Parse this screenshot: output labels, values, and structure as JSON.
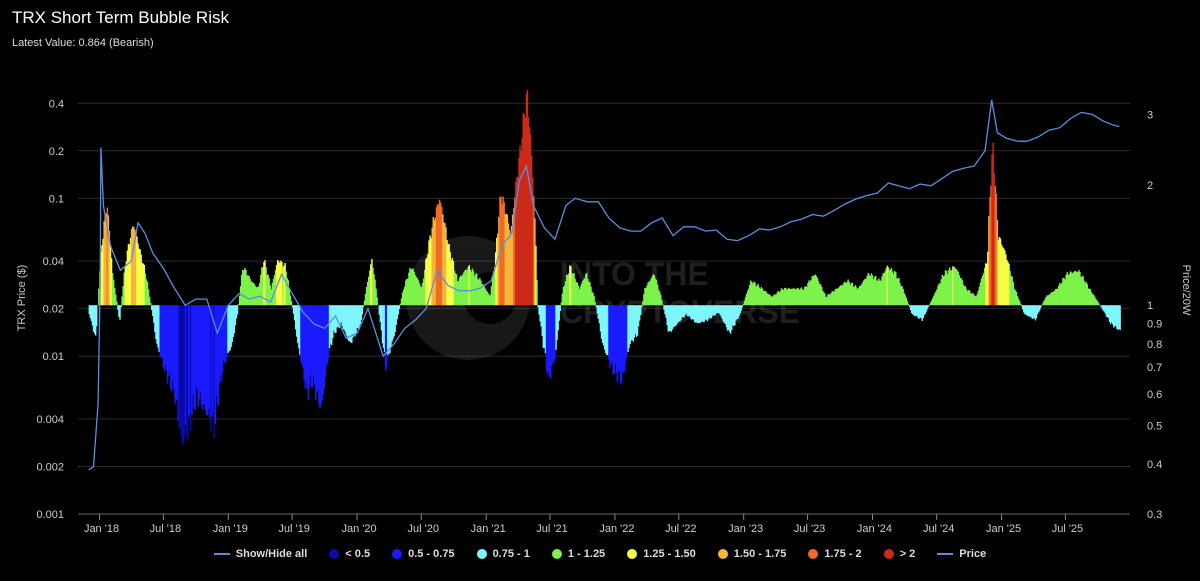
{
  "header": {
    "title": "TRX Short Term Bubble Risk",
    "subtitle": "Latest Value: 0.864 (Bearish)"
  },
  "watermark": {
    "line1": "INTO THE",
    "line2": "CRYPTOVERSE"
  },
  "chart_data": {
    "type": "bar",
    "y_left": {
      "label": "TRX Price ($)",
      "scale": "log",
      "range": [
        0.001,
        0.5
      ],
      "ticks": [
        "0.001",
        "0.002",
        "0.004",
        "0.01",
        "0.02",
        "0.04",
        "0.1",
        "0.2",
        "0.4"
      ],
      "tick_values": [
        0.001,
        0.002,
        0.004,
        0.01,
        0.02,
        0.04,
        0.1,
        0.2,
        0.4
      ]
    },
    "y_right": {
      "label": "Price/20W",
      "scale": "log",
      "range": [
        0.3,
        3.5
      ],
      "ticks": [
        "0.3",
        "0.4",
        "0.5",
        "0.6",
        "0.7",
        "0.8",
        "0.9",
        "1",
        "2",
        "3"
      ],
      "tick_values": [
        0.3,
        0.4,
        0.5,
        0.6,
        0.7,
        0.8,
        0.9,
        1,
        2,
        3
      ]
    },
    "x_range": [
      "2017-11-01",
      "2025-12-31"
    ],
    "x_ticks": [
      "Jan '18",
      "Jul '18",
      "Jan '19",
      "Jul '19",
      "Jan '20",
      "Jul '20",
      "Jan '21",
      "Jul '21",
      "Jan '22",
      "Jul '22",
      "Jan '23",
      "Jul '23",
      "Jan '24",
      "Jul '24",
      "Jan '25",
      "Jul '25"
    ],
    "x_tick_dates": [
      "2018-01-01",
      "2018-07-01",
      "2019-01-01",
      "2019-07-01",
      "2020-01-01",
      "2020-07-01",
      "2021-01-01",
      "2021-07-01",
      "2022-01-01",
      "2022-07-01",
      "2023-01-01",
      "2023-07-01",
      "2024-01-01",
      "2024-07-01",
      "2025-01-01",
      "2025-07-01"
    ],
    "bands": [
      {
        "label": "< 0.5",
        "color": "#0a0aa8"
      },
      {
        "label": "0.5 - 0.75",
        "color": "#1a1aff"
      },
      {
        "label": "0.75 - 1",
        "color": "#7ff5ff"
      },
      {
        "label": "1 - 1.25",
        "color": "#7cf24a"
      },
      {
        "label": "1.25 - 1.50",
        "color": "#f6ff45"
      },
      {
        "label": "1.50 - 1.75",
        "color": "#f6b53a"
      },
      {
        "label": "1.75 - 2",
        "color": "#f06a22"
      },
      {
        "label": "> 2",
        "color": "#cc2a18"
      }
    ],
    "ratio_series": {
      "name": "Price/20W",
      "points": [
        [
          "2017-12-01",
          0.95
        ],
        [
          "2017-12-20",
          0.82
        ],
        [
          "2018-01-05",
          1.4
        ],
        [
          "2018-01-20",
          1.8
        ],
        [
          "2018-02-05",
          1.2
        ],
        [
          "2018-02-25",
          0.9
        ],
        [
          "2018-03-15",
          1.3
        ],
        [
          "2018-04-05",
          1.6
        ],
        [
          "2018-04-25",
          1.35
        ],
        [
          "2018-05-10",
          1.2
        ],
        [
          "2018-05-25",
          1.0
        ],
        [
          "2018-06-10",
          0.8
        ],
        [
          "2018-07-01",
          0.7
        ],
        [
          "2018-08-01",
          0.6
        ],
        [
          "2018-08-20",
          0.45
        ],
        [
          "2018-09-10",
          0.5
        ],
        [
          "2018-10-01",
          0.6
        ],
        [
          "2018-10-25",
          0.55
        ],
        [
          "2018-11-20",
          0.5
        ],
        [
          "2018-12-15",
          0.7
        ],
        [
          "2019-01-10",
          0.8
        ],
        [
          "2019-01-25",
          0.95
        ],
        [
          "2019-02-10",
          1.25
        ],
        [
          "2019-03-05",
          1.15
        ],
        [
          "2019-03-25",
          1.1
        ],
        [
          "2019-04-10",
          1.3
        ],
        [
          "2019-05-01",
          1.1
        ],
        [
          "2019-05-20",
          1.3
        ],
        [
          "2019-06-10",
          1.25
        ],
        [
          "2019-06-25",
          1.05
        ],
        [
          "2019-07-15",
          0.8
        ],
        [
          "2019-08-10",
          0.6
        ],
        [
          "2019-08-25",
          0.65
        ],
        [
          "2019-09-20",
          0.55
        ],
        [
          "2019-10-10",
          0.75
        ],
        [
          "2019-10-25",
          0.85
        ],
        [
          "2019-11-15",
          0.9
        ],
        [
          "2019-12-10",
          0.8
        ],
        [
          "2020-01-10",
          0.9
        ],
        [
          "2020-02-10",
          1.3
        ],
        [
          "2020-03-05",
          0.9
        ],
        [
          "2020-03-20",
          0.7
        ],
        [
          "2020-04-15",
          0.85
        ],
        [
          "2020-05-10",
          1.1
        ],
        [
          "2020-06-01",
          1.25
        ],
        [
          "2020-07-01",
          1.1
        ],
        [
          "2020-08-01",
          1.6
        ],
        [
          "2020-08-20",
          1.85
        ],
        [
          "2020-09-15",
          1.4
        ],
        [
          "2020-10-10",
          1.15
        ],
        [
          "2020-11-10",
          1.25
        ],
        [
          "2020-12-15",
          1.15
        ],
        [
          "2021-01-10",
          1.05
        ],
        [
          "2021-01-25",
          1.3
        ],
        [
          "2021-02-10",
          1.9
        ],
        [
          "2021-02-25",
          1.7
        ],
        [
          "2021-03-10",
          1.5
        ],
        [
          "2021-04-05",
          2.4
        ],
        [
          "2021-04-25",
          3.4
        ],
        [
          "2021-05-10",
          2.2
        ],
        [
          "2021-05-25",
          1.0
        ],
        [
          "2021-06-10",
          0.8
        ],
        [
          "2021-06-25",
          0.65
        ],
        [
          "2021-07-15",
          0.75
        ],
        [
          "2021-08-05",
          1.1
        ],
        [
          "2021-08-25",
          1.25
        ],
        [
          "2021-09-20",
          1.1
        ],
        [
          "2021-10-10",
          1.2
        ],
        [
          "2021-11-01",
          1.05
        ],
        [
          "2021-11-25",
          0.8
        ],
        [
          "2021-12-20",
          0.7
        ],
        [
          "2022-01-20",
          0.65
        ],
        [
          "2022-02-10",
          0.8
        ],
        [
          "2022-03-05",
          0.85
        ],
        [
          "2022-03-25",
          1.1
        ],
        [
          "2022-04-20",
          1.2
        ],
        [
          "2022-05-10",
          1.05
        ],
        [
          "2022-06-01",
          0.85
        ],
        [
          "2022-06-25",
          0.9
        ],
        [
          "2022-07-20",
          0.95
        ],
        [
          "2022-08-20",
          0.9
        ],
        [
          "2022-09-20",
          0.92
        ],
        [
          "2022-10-20",
          0.96
        ],
        [
          "2022-11-20",
          0.85
        ],
        [
          "2022-12-20",
          0.95
        ],
        [
          "2023-01-20",
          1.15
        ],
        [
          "2023-02-20",
          1.1
        ],
        [
          "2023-03-20",
          1.05
        ],
        [
          "2023-04-20",
          1.1
        ],
        [
          "2023-05-20",
          1.1
        ],
        [
          "2023-06-20",
          1.1
        ],
        [
          "2023-07-20",
          1.2
        ],
        [
          "2023-08-20",
          1.05
        ],
        [
          "2023-09-20",
          1.1
        ],
        [
          "2023-10-20",
          1.15
        ],
        [
          "2023-11-20",
          1.1
        ],
        [
          "2023-12-20",
          1.2
        ],
        [
          "2024-01-20",
          1.15
        ],
        [
          "2024-02-10",
          1.25
        ],
        [
          "2024-03-05",
          1.2
        ],
        [
          "2024-03-25",
          1.1
        ],
        [
          "2024-04-20",
          0.95
        ],
        [
          "2024-05-20",
          0.92
        ],
        [
          "2024-06-20",
          1.05
        ],
        [
          "2024-07-20",
          1.2
        ],
        [
          "2024-08-20",
          1.25
        ],
        [
          "2024-09-20",
          1.1
        ],
        [
          "2024-10-20",
          1.05
        ],
        [
          "2024-11-20",
          1.3
        ],
        [
          "2024-12-05",
          2.5
        ],
        [
          "2024-12-20",
          1.5
        ],
        [
          "2025-01-10",
          1.35
        ],
        [
          "2025-02-05",
          1.1
        ],
        [
          "2025-03-05",
          0.95
        ],
        [
          "2025-04-05",
          0.92
        ],
        [
          "2025-05-05",
          1.05
        ],
        [
          "2025-06-05",
          1.1
        ],
        [
          "2025-07-05",
          1.2
        ],
        [
          "2025-08-05",
          1.22
        ],
        [
          "2025-09-05",
          1.1
        ],
        [
          "2025-10-05",
          1.0
        ],
        [
          "2025-11-05",
          0.9
        ],
        [
          "2025-12-01",
          0.864
        ]
      ]
    },
    "price_series": {
      "name": "Price",
      "color": "#5a8fe0",
      "points": [
        [
          "2017-12-01",
          0.0019
        ],
        [
          "2017-12-15",
          0.002
        ],
        [
          "2017-12-28",
          0.005
        ],
        [
          "2018-01-03",
          0.03
        ],
        [
          "2018-01-05",
          0.21
        ],
        [
          "2018-01-12",
          0.09
        ],
        [
          "2018-02-01",
          0.05
        ],
        [
          "2018-03-01",
          0.035
        ],
        [
          "2018-04-01",
          0.04
        ],
        [
          "2018-04-20",
          0.07
        ],
        [
          "2018-05-10",
          0.06
        ],
        [
          "2018-06-01",
          0.045
        ],
        [
          "2018-07-01",
          0.036
        ],
        [
          "2018-08-01",
          0.027
        ],
        [
          "2018-09-01",
          0.021
        ],
        [
          "2018-10-01",
          0.023
        ],
        [
          "2018-11-01",
          0.023
        ],
        [
          "2018-12-01",
          0.014
        ],
        [
          "2019-01-01",
          0.021
        ],
        [
          "2019-02-01",
          0.025
        ],
        [
          "2019-03-01",
          0.023
        ],
        [
          "2019-04-01",
          0.024
        ],
        [
          "2019-05-01",
          0.022
        ],
        [
          "2019-06-01",
          0.033
        ],
        [
          "2019-07-01",
          0.025
        ],
        [
          "2019-08-01",
          0.019
        ],
        [
          "2019-09-01",
          0.016
        ],
        [
          "2019-10-01",
          0.015
        ],
        [
          "2019-11-01",
          0.018
        ],
        [
          "2019-12-01",
          0.013
        ],
        [
          "2020-01-01",
          0.014
        ],
        [
          "2020-02-01",
          0.02
        ],
        [
          "2020-03-15",
          0.01
        ],
        [
          "2020-04-15",
          0.012
        ],
        [
          "2020-05-15",
          0.015
        ],
        [
          "2020-06-15",
          0.017
        ],
        [
          "2020-07-15",
          0.02
        ],
        [
          "2020-08-15",
          0.035
        ],
        [
          "2020-09-15",
          0.028
        ],
        [
          "2020-10-15",
          0.026
        ],
        [
          "2020-11-15",
          0.026
        ],
        [
          "2020-12-15",
          0.027
        ],
        [
          "2021-01-15",
          0.03
        ],
        [
          "2021-02-15",
          0.05
        ],
        [
          "2021-03-15",
          0.06
        ],
        [
          "2021-04-05",
          0.13
        ],
        [
          "2021-04-25",
          0.16
        ],
        [
          "2021-05-15",
          0.09
        ],
        [
          "2021-06-15",
          0.065
        ],
        [
          "2021-07-15",
          0.055
        ],
        [
          "2021-08-15",
          0.09
        ],
        [
          "2021-09-10",
          0.1
        ],
        [
          "2021-10-15",
          0.095
        ],
        [
          "2021-11-15",
          0.095
        ],
        [
          "2021-12-15",
          0.075
        ],
        [
          "2022-01-15",
          0.065
        ],
        [
          "2022-02-15",
          0.062
        ],
        [
          "2022-03-15",
          0.062
        ],
        [
          "2022-04-15",
          0.07
        ],
        [
          "2022-05-15",
          0.075
        ],
        [
          "2022-06-15",
          0.058
        ],
        [
          "2022-07-15",
          0.066
        ],
        [
          "2022-08-15",
          0.066
        ],
        [
          "2022-09-15",
          0.062
        ],
        [
          "2022-10-15",
          0.063
        ],
        [
          "2022-11-15",
          0.055
        ],
        [
          "2022-12-15",
          0.054
        ],
        [
          "2023-01-15",
          0.058
        ],
        [
          "2023-02-15",
          0.064
        ],
        [
          "2023-03-15",
          0.063
        ],
        [
          "2023-04-15",
          0.066
        ],
        [
          "2023-05-15",
          0.071
        ],
        [
          "2023-06-15",
          0.074
        ],
        [
          "2023-07-15",
          0.079
        ],
        [
          "2023-08-15",
          0.077
        ],
        [
          "2023-09-15",
          0.084
        ],
        [
          "2023-10-15",
          0.092
        ],
        [
          "2023-11-15",
          0.099
        ],
        [
          "2023-12-15",
          0.104
        ],
        [
          "2024-01-15",
          0.108
        ],
        [
          "2024-02-15",
          0.125
        ],
        [
          "2024-03-15",
          0.12
        ],
        [
          "2024-04-15",
          0.115
        ],
        [
          "2024-05-15",
          0.123
        ],
        [
          "2024-06-15",
          0.12
        ],
        [
          "2024-07-15",
          0.133
        ],
        [
          "2024-08-15",
          0.148
        ],
        [
          "2024-09-15",
          0.155
        ],
        [
          "2024-10-15",
          0.16
        ],
        [
          "2024-11-15",
          0.2
        ],
        [
          "2024-12-04",
          0.42
        ],
        [
          "2024-12-20",
          0.26
        ],
        [
          "2025-01-15",
          0.24
        ],
        [
          "2025-02-15",
          0.23
        ],
        [
          "2025-03-15",
          0.23
        ],
        [
          "2025-04-15",
          0.245
        ],
        [
          "2025-05-15",
          0.27
        ],
        [
          "2025-06-15",
          0.28
        ],
        [
          "2025-07-15",
          0.32
        ],
        [
          "2025-08-15",
          0.35
        ],
        [
          "2025-09-15",
          0.34
        ],
        [
          "2025-10-15",
          0.31
        ],
        [
          "2025-11-15",
          0.29
        ],
        [
          "2025-12-01",
          0.285
        ]
      ]
    },
    "legend": {
      "placement": "bottom",
      "show_hide_label": "Show/Hide all",
      "price_label": "Price"
    }
  }
}
